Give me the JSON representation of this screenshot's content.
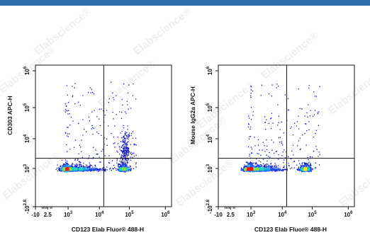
{
  "colors": {
    "band": "#2f6fae",
    "density": [
      "#0a12c8",
      "#1f4ff0",
      "#1ea0f0",
      "#22d2c0",
      "#7fe34a",
      "#f2e62a",
      "#f39a1c",
      "#e21b1b"
    ],
    "gate": "#111111"
  },
  "watermark": "Elabscience®",
  "chart_data": [
    {
      "type": "scatter",
      "xlabel": "CD123 Elab Fluor® 488-H",
      "ylabel": "CD303 APC-H",
      "x_scale": "biexponential",
      "y_scale": "biexponential",
      "xlim": [
        -10,
        1000000
      ],
      "ylim": [
        -631,
        1000000
      ],
      "x_ticks": [
        {
          "value": -10,
          "label": "-10",
          "sup": ""
        },
        {
          "value": 2.5,
          "label": "2.5",
          "sup": ""
        },
        {
          "value": 1000,
          "label": "10",
          "sup": "3"
        },
        {
          "value": 10000,
          "label": "10",
          "sup": "4"
        },
        {
          "value": 100000,
          "label": "10",
          "sup": "5"
        },
        {
          "value": 1000000,
          "label": "10",
          "sup": "6"
        }
      ],
      "y_ticks": [
        {
          "value": -631,
          "label": "-10",
          "sup": "2.8"
        },
        {
          "value": 1000,
          "label": "10",
          "sup": "3"
        },
        {
          "value": 10000,
          "label": "10",
          "sup": "4"
        },
        {
          "value": 100000,
          "label": "10",
          "sup": "5"
        },
        {
          "value": 1000000,
          "label": "10",
          "sup": "6"
        }
      ],
      "quadrant_gate": {
        "x": 14000,
        "y": 2200
      },
      "populations": [
        {
          "name": "",
          "x_log10": 3.0,
          "y_log10": 2.9,
          "weight": 0.62
        },
        {
          "name": "",
          "x_log10": 4.8,
          "y_log10": 2.9,
          "weight": 0.2
        },
        {
          "name": "",
          "x_log10": 4.85,
          "y_log10": 3.65,
          "weight": 0.06
        }
      ],
      "grid": false,
      "legend": "none"
    },
    {
      "type": "scatter",
      "xlabel": "CD123 Elab Fluor® 488-H",
      "ylabel": "Mouse IgG2a APC-H",
      "x_scale": "biexponential",
      "y_scale": "biexponential",
      "xlim": [
        -10,
        1000000
      ],
      "ylim": [
        -631,
        1000000
      ],
      "x_ticks": [
        {
          "value": -10,
          "label": "-10",
          "sup": ""
        },
        {
          "value": 2.5,
          "label": "2.5",
          "sup": ""
        },
        {
          "value": 1000,
          "label": "10",
          "sup": "3"
        },
        {
          "value": 10000,
          "label": "10",
          "sup": "4"
        },
        {
          "value": 100000,
          "label": "10",
          "sup": "5"
        },
        {
          "value": 1000000,
          "label": "10",
          "sup": "6"
        }
      ],
      "y_ticks": [
        {
          "value": -631,
          "label": "-10",
          "sup": "2.8"
        },
        {
          "value": 1000,
          "label": "10",
          "sup": "3"
        },
        {
          "value": 10000,
          "label": "10",
          "sup": "4"
        },
        {
          "value": 100000,
          "label": "10",
          "sup": "5"
        },
        {
          "value": 1000000,
          "label": "10",
          "sup": "6"
        }
      ],
      "quadrant_gate": {
        "x": 14000,
        "y": 2200
      },
      "populations": [
        {
          "name": "",
          "x_log10": 3.0,
          "y_log10": 2.9,
          "weight": 0.66
        },
        {
          "name": "",
          "x_log10": 4.75,
          "y_log10": 2.9,
          "weight": 0.22
        }
      ],
      "grid": false,
      "legend": "none"
    }
  ]
}
